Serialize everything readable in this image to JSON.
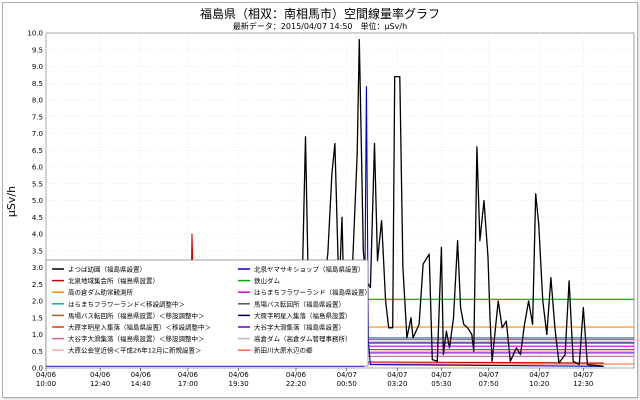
{
  "chart_data": {
    "type": "line",
    "title": "福島県（相双：南相馬市）空間線量率グラフ",
    "subtitle": "最新データ：2015/04/07 14:50　単位：μSv/h",
    "ylabel": "μSv/h",
    "ylim": [
      0,
      10
    ],
    "yticks": [
      "0.0",
      "0.5",
      "1.0",
      "1.5",
      "2.0",
      "2.5",
      "3.0",
      "3.5",
      "4.0",
      "4.5",
      "5.0",
      "5.5",
      "6.0",
      "6.5",
      "7.0",
      "7.5",
      "8.0",
      "8.5",
      "9.0",
      "9.5",
      "10.0"
    ],
    "x_range_hours": [
      0,
      29
    ],
    "xticks": [
      {
        "h": 0,
        "date": "04/06",
        "time": "10:00"
      },
      {
        "h": 2.67,
        "date": "04/06",
        "time": "12:40"
      },
      {
        "h": 4.67,
        "date": "04/06",
        "time": "14:40"
      },
      {
        "h": 7,
        "date": "04/06",
        "time": "17:00"
      },
      {
        "h": 9.5,
        "date": "04/06",
        "time": "19:30"
      },
      {
        "h": 12.33,
        "date": "04/06",
        "time": "22:20"
      },
      {
        "h": 14.83,
        "date": "04/07",
        "time": "00:50"
      },
      {
        "h": 17.33,
        "date": "04/07",
        "time": "03:20"
      },
      {
        "h": 19.5,
        "date": "04/07",
        "time": "05:30"
      },
      {
        "h": 21.83,
        "date": "04/07",
        "time": "07:50"
      },
      {
        "h": 24.33,
        "date": "04/07",
        "time": "10:20"
      },
      {
        "h": 26.5,
        "date": "04/07",
        "time": "12:30"
      }
    ],
    "legend_position": "bottom-left",
    "legend": [
      {
        "name": "よつば幼園（福島県設置）",
        "color": "#000000"
      },
      {
        "name": "北泉ヤマサキショップ（福島県設置）",
        "color": "#0000cc"
      },
      {
        "name": "北泉地域集会所（福島県設置）",
        "color": "#cc0000"
      },
      {
        "name": "鉄山ダム",
        "color": "#00aa00"
      },
      {
        "name": "高の倉ダム助常観測所",
        "color": "#ff8c00"
      },
      {
        "name": "はらまちフラワーランド（福島県設置）",
        "color": "#cc00cc"
      },
      {
        "name": "はらまちフラワーランド＜移設調整中＞",
        "color": "#00aacc"
      },
      {
        "name": "馬場バス転回所（福島県設置）",
        "color": "#555555"
      },
      {
        "name": "馬場バス転回所（福島県設置）＜移設調整中＞",
        "color": "#996633"
      },
      {
        "name": "大原字明星入集落（福島県設置）",
        "color": "#000066"
      },
      {
        "name": "大原字明星入集落（福島県設置）＜移設調整中＞",
        "color": "#ff3300"
      },
      {
        "name": "大谷字大滑集落（福島県設置）",
        "color": "#6600cc"
      },
      {
        "name": "大谷字大滑集落（福島県設置）＜移設調整中＞",
        "color": "#cc6699"
      },
      {
        "name": "高倉ダム（高倉ダム管理事務所）",
        "color": "#bbbbbb"
      },
      {
        "name": "大原公会堂近傍＜平成26年12月に新規設置＞",
        "color": "#ffaaaa"
      },
      {
        "name": "新田川大原水辺の郷",
        "color": "#ff6633"
      }
    ],
    "series": [
      {
        "name": "よつば幼園（福島県設置）",
        "color": "#000000",
        "points": [
          [
            0,
            0.12
          ],
          [
            12.2,
            0.12
          ],
          [
            12.4,
            1.9
          ],
          [
            12.55,
            0.25
          ],
          [
            12.8,
            6.9
          ],
          [
            13.0,
            0.4
          ],
          [
            13.5,
            0.45
          ],
          [
            13.7,
            2.5
          ],
          [
            13.9,
            3.4
          ],
          [
            14.1,
            5.8
          ],
          [
            14.25,
            6.7
          ],
          [
            14.45,
            2.2
          ],
          [
            14.6,
            4.5
          ],
          [
            14.75,
            0.6
          ],
          [
            15.05,
            2.1
          ],
          [
            15.35,
            6.4
          ],
          [
            15.45,
            9.8
          ],
          [
            15.55,
            6.7
          ],
          [
            15.65,
            3.5
          ],
          [
            15.8,
            2.6
          ],
          [
            16.0,
            2.4
          ],
          [
            16.2,
            6.7
          ],
          [
            16.35,
            3.2
          ],
          [
            16.55,
            4.4
          ],
          [
            16.75,
            2.0
          ],
          [
            16.9,
            1.2
          ],
          [
            17.1,
            1.2
          ],
          [
            17.2,
            8.7
          ],
          [
            17.45,
            8.7
          ],
          [
            17.6,
            3.0
          ],
          [
            17.8,
            0.9
          ],
          [
            18.0,
            1.5
          ],
          [
            18.1,
            0.9
          ],
          [
            18.4,
            1.3
          ],
          [
            18.6,
            3.1
          ],
          [
            18.9,
            3.4
          ],
          [
            19.05,
            0.25
          ],
          [
            19.3,
            0.2
          ],
          [
            19.5,
            3.6
          ],
          [
            19.6,
            0.4
          ],
          [
            19.75,
            1.1
          ],
          [
            19.9,
            0.6
          ],
          [
            20.1,
            1.5
          ],
          [
            20.3,
            3.8
          ],
          [
            20.45,
            1.8
          ],
          [
            20.6,
            1.3
          ],
          [
            20.8,
            1.2
          ],
          [
            21.0,
            1.0
          ],
          [
            21.1,
            0.5
          ],
          [
            21.25,
            6.6
          ],
          [
            21.4,
            3.8
          ],
          [
            21.6,
            5.0
          ],
          [
            21.8,
            3.3
          ],
          [
            21.9,
            1.5
          ],
          [
            22.0,
            0.2
          ],
          [
            22.3,
            2.0
          ],
          [
            22.5,
            1.2
          ],
          [
            22.7,
            1.4
          ],
          [
            22.9,
            0.2
          ],
          [
            23.2,
            0.6
          ],
          [
            23.4,
            0.4
          ],
          [
            23.6,
            1.3
          ],
          [
            23.8,
            2.0
          ],
          [
            24.0,
            1.3
          ],
          [
            24.15,
            5.2
          ],
          [
            24.3,
            4.3
          ],
          [
            24.5,
            2.0
          ],
          [
            24.7,
            1.0
          ],
          [
            24.9,
            2.7
          ],
          [
            25.1,
            1.2
          ],
          [
            25.3,
            0.15
          ],
          [
            25.6,
            0.4
          ],
          [
            25.8,
            2.6
          ],
          [
            26.0,
            0.2
          ],
          [
            26.3,
            0.1
          ],
          [
            26.5,
            1.8
          ],
          [
            26.7,
            0.1
          ],
          [
            27.5,
            0.05
          ]
        ]
      },
      {
        "name": "北泉ヤマサキショップ（福島県設置）",
        "color": "#0000cc",
        "points": [
          [
            0,
            0.05
          ],
          [
            15.7,
            0.05
          ],
          [
            15.8,
            8.4
          ],
          [
            15.9,
            0.8
          ],
          [
            16.0,
            0.1
          ],
          [
            27.5,
            0.05
          ]
        ]
      },
      {
        "name": "北泉地域集会所（福島県設置）",
        "color": "#cc0000",
        "points": [
          [
            0,
            0.15
          ],
          [
            7.1,
            0.15
          ],
          [
            7.2,
            4.0
          ],
          [
            7.35,
            0.2
          ],
          [
            27.5,
            0.15
          ]
        ]
      },
      {
        "name": "鉄山ダム",
        "color": "#00aa00",
        "points": [
          [
            0,
            2.05
          ],
          [
            29,
            2.05
          ]
        ]
      },
      {
        "name": "高の倉ダム助常観測所",
        "color": "#ff8c00",
        "points": [
          [
            0,
            1.22
          ],
          [
            29,
            1.22
          ]
        ]
      },
      {
        "name": "はらまちフラワーランド（福島県設置）",
        "color": "#cc00cc",
        "points": [
          [
            0,
            0.65
          ],
          [
            29,
            0.65
          ]
        ]
      },
      {
        "name": "はらまちフラワーランド＜移設調整中＞",
        "color": "#00aacc",
        "points": [
          [
            0,
            0.85
          ],
          [
            29,
            0.85
          ]
        ]
      },
      {
        "name": "馬場バス転回所（福島県設置）",
        "color": "#555555",
        "points": [
          [
            0,
            0.9
          ],
          [
            29,
            0.9
          ]
        ]
      },
      {
        "name": "大原字明星入集落（福島県設置）",
        "color": "#000066",
        "points": [
          [
            0,
            0.75
          ],
          [
            29,
            0.75
          ]
        ]
      },
      {
        "name": "大原字明星入集落（福島県設置）＜移設調整中＞",
        "color": "#ff3300",
        "points": [
          [
            0,
            0.55
          ],
          [
            29,
            0.55
          ]
        ]
      },
      {
        "name": "大谷字大滑集落（福島県設置）",
        "color": "#6600cc",
        "points": [
          [
            0,
            0.45
          ],
          [
            29,
            0.45
          ]
        ]
      },
      {
        "name": "大谷字大滑集落（福島県設置）＜移設調整中＞",
        "color": "#cc6699",
        "points": [
          [
            0,
            0.35
          ],
          [
            29,
            0.35
          ]
        ]
      },
      {
        "name": "高倉ダム（高倉ダム管理事務所）",
        "color": "#bbbbbb",
        "points": [
          [
            0,
            0.8
          ],
          [
            29,
            0.8
          ]
        ]
      },
      {
        "name": "大原公会堂近傍＜平成26年12月に新規設置＞",
        "color": "#ffaaaa",
        "points": [
          [
            0,
            0.5
          ],
          [
            29,
            0.5
          ]
        ]
      },
      {
        "name": "新田川大原水辺の郷",
        "color": "#ff6633",
        "points": [
          [
            0,
            0.12
          ],
          [
            29,
            0.12
          ]
        ]
      }
    ]
  }
}
